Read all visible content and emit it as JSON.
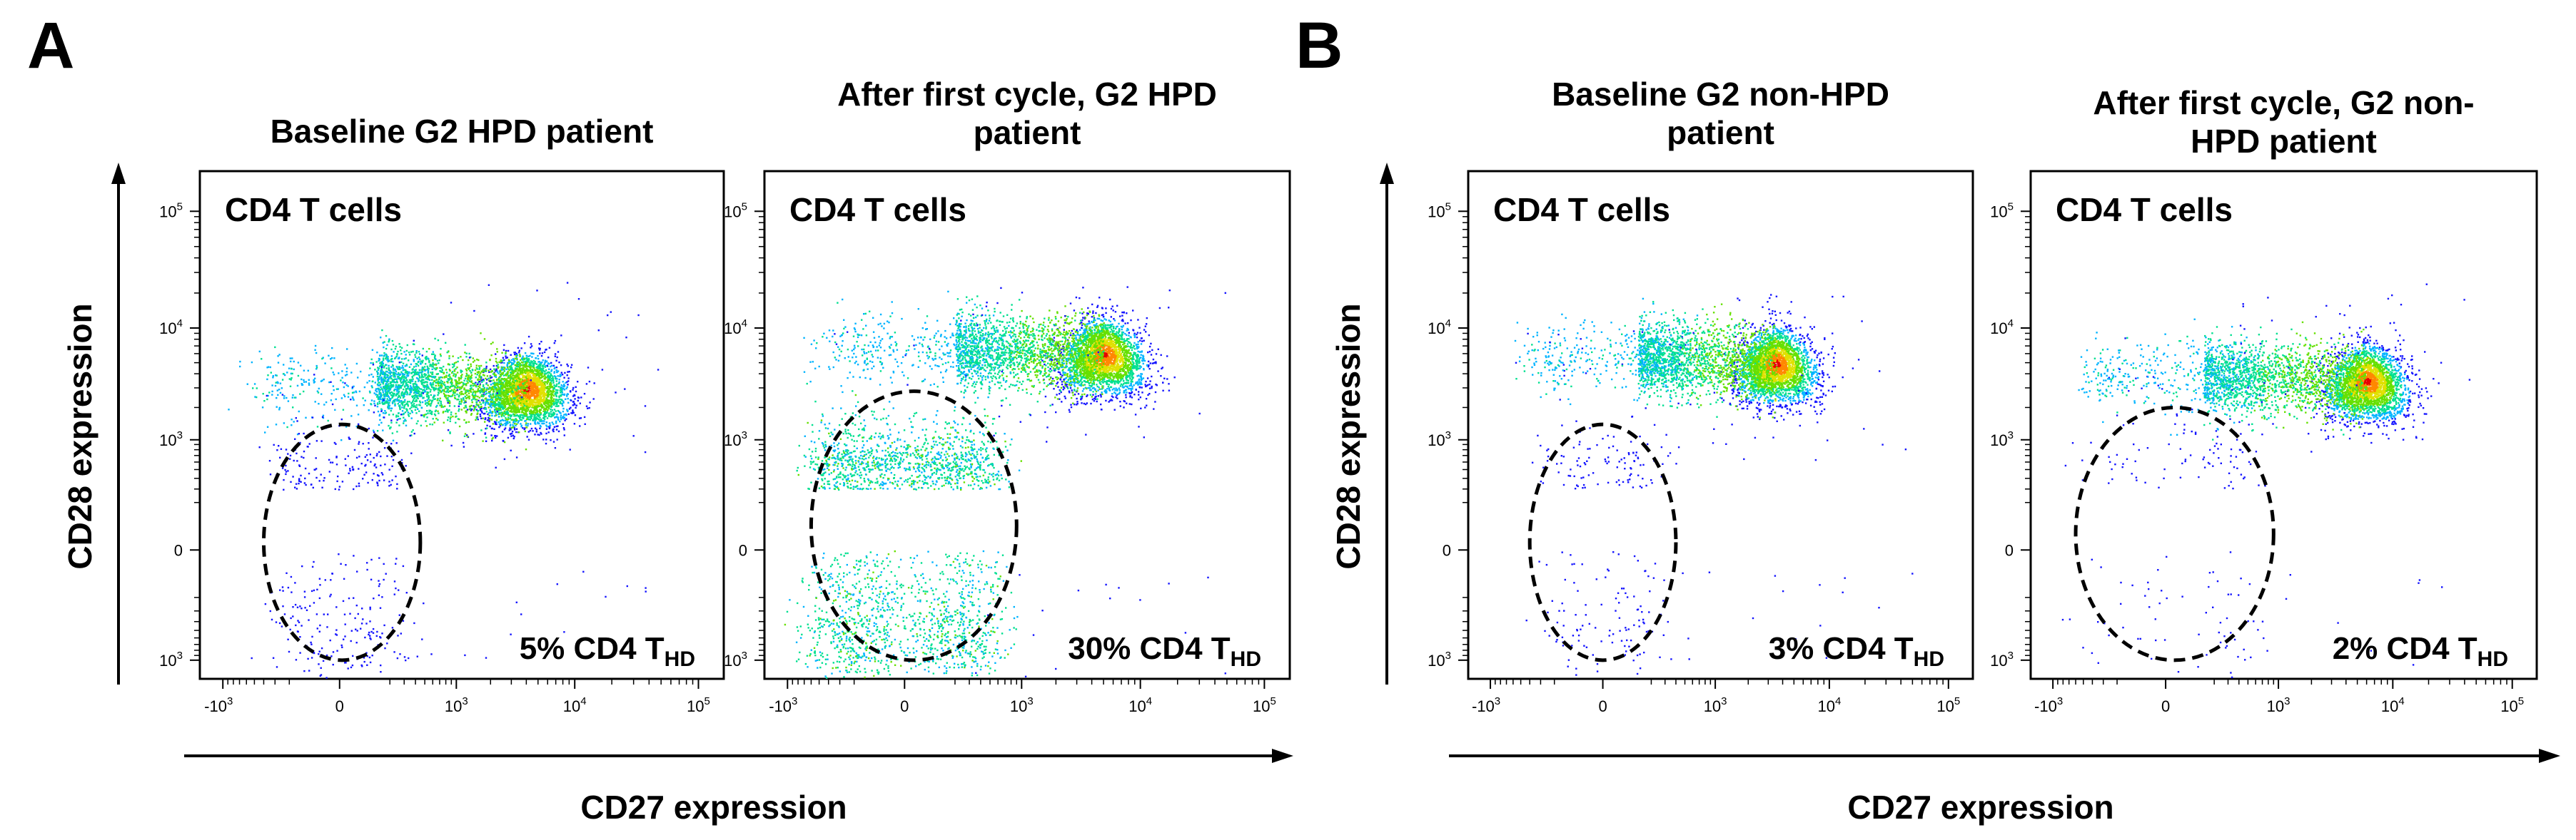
{
  "figure": {
    "panel_letters": [
      "A",
      "B"
    ],
    "y_axis_label": "CD28 expression",
    "x_axis_label": "CD27 expression"
  },
  "chart_data": [
    {
      "type": "scatter",
      "panel": "A",
      "title": [
        "Baseline G2 HPD patient"
      ],
      "cell_label": "CD4 T cells",
      "gate_label": {
        "prefix": "5% CD4 T",
        "sub": "HD"
      },
      "gate_percent": 5,
      "gate_ellipse": {
        "center_x": 0,
        "center_y": 0,
        "x_range": [
          -400,
          450
        ],
        "y_range": [
          -1000,
          1400
        ]
      },
      "xlabel": "CD27 expression",
      "ylabel": "CD28 expression",
      "x_ticks": [
        "-10^3",
        "0",
        "10^3",
        "10^4",
        "10^5"
      ],
      "y_ticks": [
        "10^5",
        "10^4",
        "10^3",
        "0",
        "10^3"
      ],
      "populations": [
        {
          "name": "main",
          "x_center": 4000,
          "y_center": 3000,
          "color_peak": "#e60000"
        },
        {
          "name": "CD27-negative tail",
          "x_center": 30,
          "y_center": 3000
        },
        {
          "name": "THD (CD27-CD28-)",
          "x_center": 0,
          "y_center": 0
        }
      ]
    },
    {
      "type": "scatter",
      "panel": "A",
      "title": [
        "After first cycle, G2 HPD",
        "patient"
      ],
      "cell_label": "CD4 T cells",
      "gate_label": {
        "prefix": "30% CD4 T",
        "sub": "HD"
      },
      "gate_percent": 30,
      "gate_ellipse": {
        "center_x": 0,
        "center_y": 0,
        "x_range": [
          -600,
          900
        ],
        "y_range": [
          -1000,
          2800
        ]
      },
      "xlabel": "CD27 expression",
      "ylabel": "CD28 expression",
      "x_ticks": [
        "-10^3",
        "0",
        "10^3",
        "10^4",
        "10^5"
      ],
      "y_ticks": [
        "10^5",
        "10^4",
        "10^3",
        "0",
        "10^3"
      ],
      "populations": [
        {
          "name": "main",
          "x_center": 5000,
          "y_center": 6000,
          "color_peak": "#e60000"
        },
        {
          "name": "CD27-negative tail",
          "x_center": 100,
          "y_center": 7000
        },
        {
          "name": "THD (CD27-CD28-)",
          "x_center": 0,
          "y_center": 0
        }
      ]
    },
    {
      "type": "scatter",
      "panel": "B",
      "title": [
        "Baseline G2 non-HPD",
        "patient"
      ],
      "cell_label": "CD4 T cells",
      "gate_label": {
        "prefix": "3% CD4 T",
        "sub": "HD"
      },
      "gate_percent": 3,
      "gate_ellipse": {
        "center_x": 0,
        "center_y": 0,
        "x_range": [
          -400,
          400
        ],
        "y_range": [
          -1000,
          1400
        ]
      },
      "xlabel": "CD27 expression",
      "ylabel": "CD28 expression",
      "x_ticks": [
        "-10^3",
        "0",
        "10^3",
        "10^4",
        "10^5"
      ],
      "y_ticks": [
        "10^5",
        "10^4",
        "10^3",
        "0",
        "10^3"
      ],
      "populations": [
        {
          "name": "main",
          "x_center": 3500,
          "y_center": 5000,
          "color_peak": "#e60000"
        },
        {
          "name": "CD27-negative tail",
          "x_center": 0,
          "y_center": 5000
        },
        {
          "name": "THD (CD27-CD28-)",
          "x_center": 0,
          "y_center": 0
        }
      ]
    },
    {
      "type": "scatter",
      "panel": "B",
      "title": [
        "After first cycle, G2 non-",
        "HPD patient"
      ],
      "cell_label": "CD4 T cells",
      "gate_label": {
        "prefix": "2% CD4 T",
        "sub": "HD"
      },
      "gate_percent": 2,
      "gate_ellipse": {
        "center_x": 100,
        "center_y": 0,
        "x_range": [
          -600,
          900
        ],
        "y_range": [
          -1000,
          2000
        ]
      },
      "xlabel": "CD27 expression",
      "ylabel": "CD28 expression",
      "x_ticks": [
        "-10^3",
        "0",
        "10^3",
        "10^4",
        "10^5"
      ],
      "y_ticks": [
        "10^5",
        "10^4",
        "10^3",
        "0",
        "10^3"
      ],
      "populations": [
        {
          "name": "main",
          "x_center": 6000,
          "y_center": 3500,
          "color_peak": "#e60000"
        },
        {
          "name": "CD27-negative tail",
          "x_center": 0,
          "y_center": 4000
        },
        {
          "name": "THD (CD27-CD28-)",
          "x_center": 0,
          "y_center": 0
        }
      ]
    }
  ],
  "colors": {
    "density_scale": [
      "#1414ff",
      "#00b4ff",
      "#00e090",
      "#66e000",
      "#e0e000",
      "#ff8800",
      "#e60000"
    ],
    "axis": "#000000"
  }
}
